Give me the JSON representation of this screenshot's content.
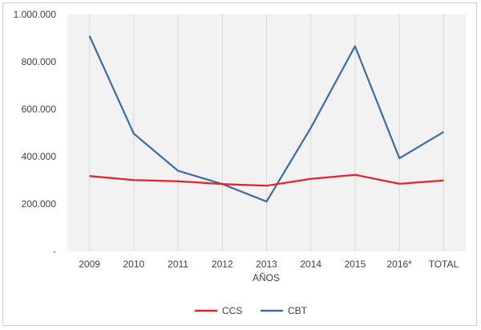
{
  "chart_data": {
    "type": "line",
    "title": "",
    "xlabel": "AÑOS",
    "ylabel": "",
    "categories": [
      "2009",
      "2010",
      "2011",
      "2012",
      "2013",
      "2014",
      "2015",
      "2016*",
      "TOTAL"
    ],
    "ylim": [
      0,
      1000000
    ],
    "yticks": [
      0,
      200000,
      400000,
      600000,
      800000,
      1000000
    ],
    "ytick_labels": [
      "-",
      "200.000",
      "400.000",
      "600.000",
      "800.000",
      "1.000.000"
    ],
    "grid": "vertical",
    "legend": "bottom",
    "series": [
      {
        "name": "CCS",
        "color": "#e8202a",
        "values": [
          318000,
          301000,
          296000,
          284000,
          277000,
          306000,
          323000,
          285000,
          299000
        ]
      },
      {
        "name": "CBT",
        "color": "#3f6ea3",
        "values": [
          910000,
          497000,
          340000,
          284000,
          210000,
          521000,
          866000,
          393000,
          504000
        ]
      }
    ]
  }
}
